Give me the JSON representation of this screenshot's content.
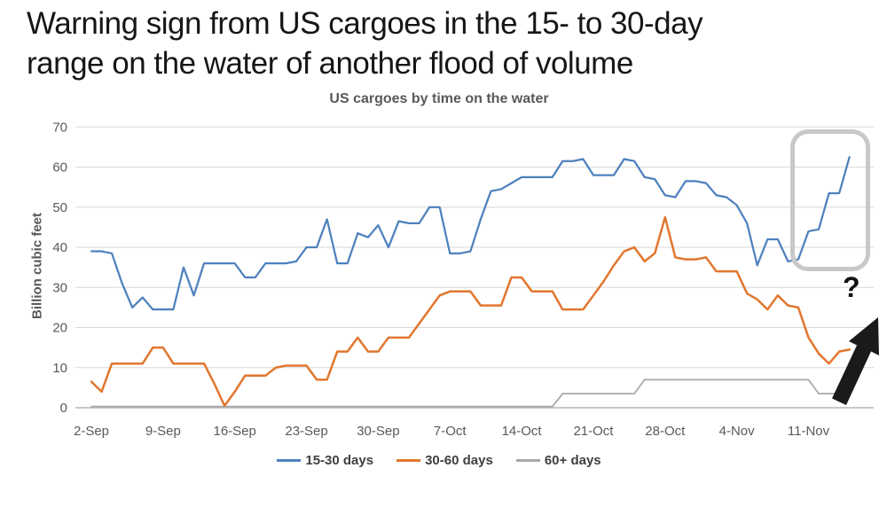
{
  "headline": {
    "line1": "Warning sign from US cargoes in the 15- to 30-day",
    "line2": "range on the water of another flood of volume"
  },
  "chart_data": {
    "type": "line",
    "title": "US cargoes by time on the water",
    "xlabel": "",
    "ylabel": "Billion cubic feet",
    "ylim": [
      0,
      70
    ],
    "yticks": [
      0,
      10,
      20,
      30,
      40,
      50,
      60,
      70
    ],
    "grid": true,
    "legend_position": "bottom",
    "x_unit": "daily observations, day index 0 = 2-Sep",
    "x_tick_labels": [
      "2-Sep",
      "9-Sep",
      "16-Sep",
      "23-Sep",
      "30-Sep",
      "7-Oct",
      "14-Oct",
      "21-Oct",
      "28-Oct",
      "4-Nov",
      "11-Nov"
    ],
    "x_tick_day_index": [
      0,
      7,
      14,
      21,
      28,
      35,
      42,
      49,
      56,
      63,
      70
    ],
    "series": [
      {
        "name": "15-30 days",
        "color": "#4e81bd",
        "values": [
          39,
          39,
          38.5,
          31,
          25,
          27.5,
          24.5,
          24.5,
          24.5,
          35,
          28,
          36,
          36,
          36,
          36,
          32.5,
          32.5,
          36,
          36,
          36,
          36.5,
          40,
          40,
          47,
          36,
          36,
          43.5,
          42.5,
          45.5,
          40,
          46.5,
          46,
          46,
          50,
          50,
          38.5,
          38.5,
          39,
          47,
          54,
          54.5,
          56,
          57.5,
          57.5,
          57.5,
          57.5,
          61.5,
          61.5,
          62,
          58,
          58,
          58,
          62,
          61.5,
          57.5,
          57,
          53,
          52.5,
          56.5,
          56.5,
          56,
          53,
          52.5,
          50.5,
          46,
          35.5,
          42,
          42,
          36.5,
          37,
          44,
          44.5,
          53.5,
          53.5,
          62.5
        ]
      },
      {
        "name": "30-60 days",
        "color": "#e2762e",
        "values": [
          6.5,
          4,
          11,
          11,
          11,
          11,
          15,
          15,
          11,
          11,
          11,
          11,
          6,
          0.5,
          4,
          8,
          8,
          8,
          10,
          10.5,
          10.5,
          10.5,
          7,
          7,
          14,
          14,
          17.5,
          14,
          14,
          17.5,
          17.5,
          17.5,
          21,
          24.5,
          28,
          29,
          29,
          29,
          25.5,
          25.5,
          25.5,
          32.5,
          32.5,
          29,
          29,
          29,
          24.5,
          24.5,
          24.5,
          28,
          31.5,
          35.5,
          39,
          40,
          36.5,
          38.5,
          47.5,
          37.5,
          37,
          37,
          37.5,
          34,
          34,
          34,
          28.5,
          27,
          24.5,
          28,
          25.5,
          25,
          17.5,
          13.5,
          11,
          14,
          14.5
        ]
      },
      {
        "name": "60+ days",
        "color": "#a8a8a8",
        "values": [
          0.3,
          0.3,
          0.3,
          0.3,
          0.3,
          0.3,
          0.3,
          0.3,
          0.3,
          0.3,
          0.3,
          0.3,
          0.3,
          0.3,
          0.3,
          0.3,
          0.3,
          0.3,
          0.3,
          0.3,
          0.3,
          0.3,
          0.3,
          0.3,
          0.3,
          0.3,
          0.3,
          0.3,
          0.3,
          0.3,
          0.3,
          0.3,
          0.3,
          0.3,
          0.3,
          0.3,
          0.3,
          0.3,
          0.3,
          0.3,
          0.3,
          0.3,
          0.3,
          0.3,
          0.3,
          0.3,
          3.5,
          3.5,
          3.5,
          3.5,
          3.5,
          3.5,
          3.5,
          3.5,
          7,
          7,
          7,
          7,
          7,
          7,
          7,
          7,
          7,
          7,
          7,
          7,
          7,
          7,
          7,
          7,
          7,
          3.5,
          3.5,
          3.5,
          3.5
        ]
      }
    ],
    "annotation_colors": {
      "highlight_box_border": "#c8c8c8",
      "arrow_fill": "#1a1a1a"
    }
  },
  "annotations": {
    "question_mark": "?"
  }
}
